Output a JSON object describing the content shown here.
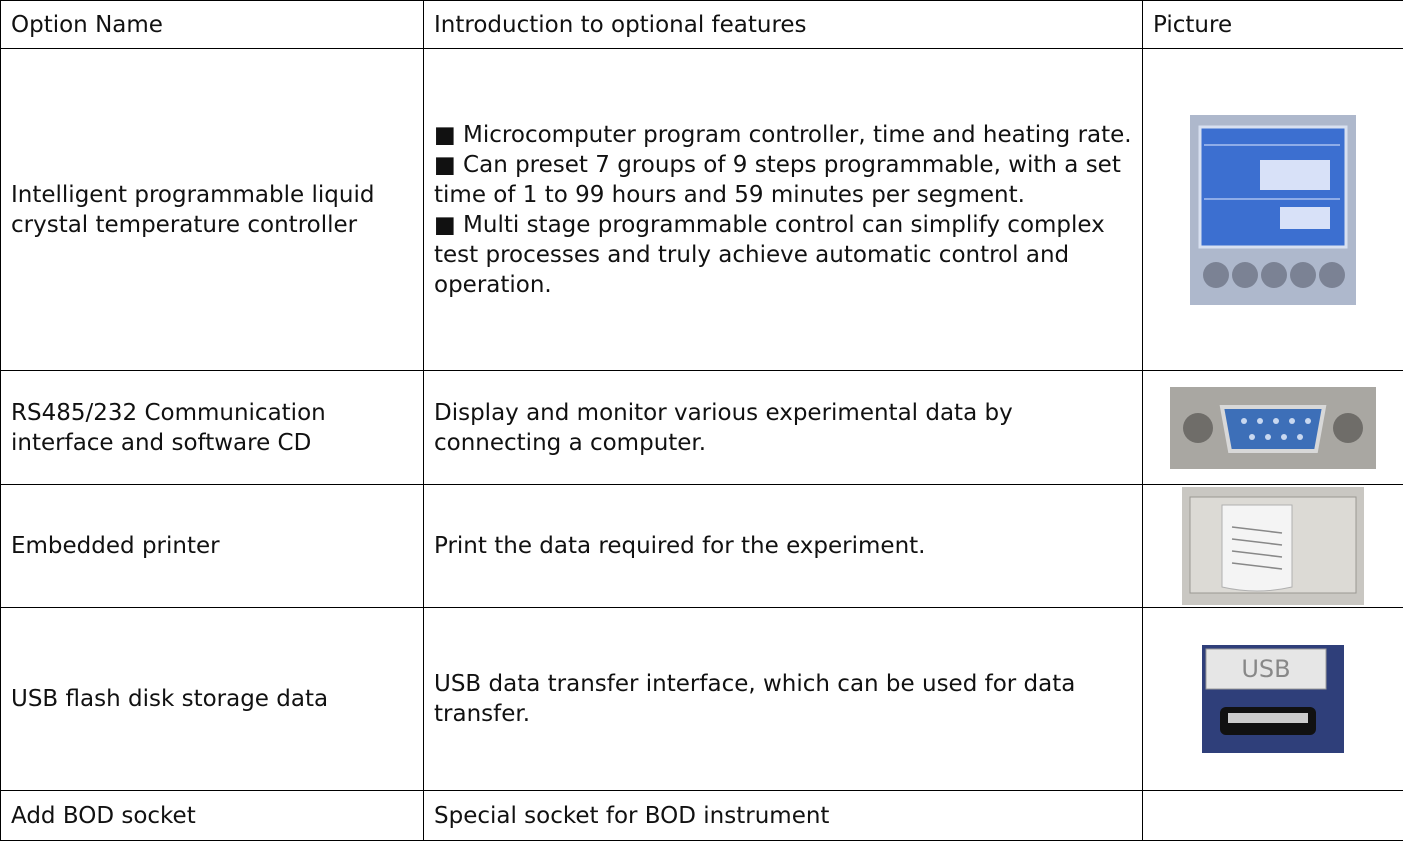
{
  "table": {
    "header": [
      "Option Name",
      "Introduction to optional features",
      "Picture"
    ],
    "rows": [
      {
        "name": "Intelligent programmable liquid crystal temperature controller",
        "features": [
          "■ Microcomputer program controller, time and heating rate.",
          "■ Can preset 7 groups of 9 steps programmable, with a set time of 1 to 99 hours and 59 minutes per segment.",
          "■ Multi stage programmable control can simplify complex test processes and truly achieve automatic control and operation."
        ]
      },
      {
        "name": "RS485/232 Communication interface and software CD",
        "features": [
          "Display and monitor various experimental data by connecting a computer."
        ]
      },
      {
        "name": "Embedded printer",
        "features": [
          "Print the data required for the experiment."
        ]
      },
      {
        "name": "USB flash disk storage data",
        "features": [
          "USB data transfer interface, which can be used for data transfer."
        ]
      },
      {
        "name": "Add BOD socket",
        "features": [
          "Special socket for BOD instrument"
        ]
      }
    ]
  }
}
